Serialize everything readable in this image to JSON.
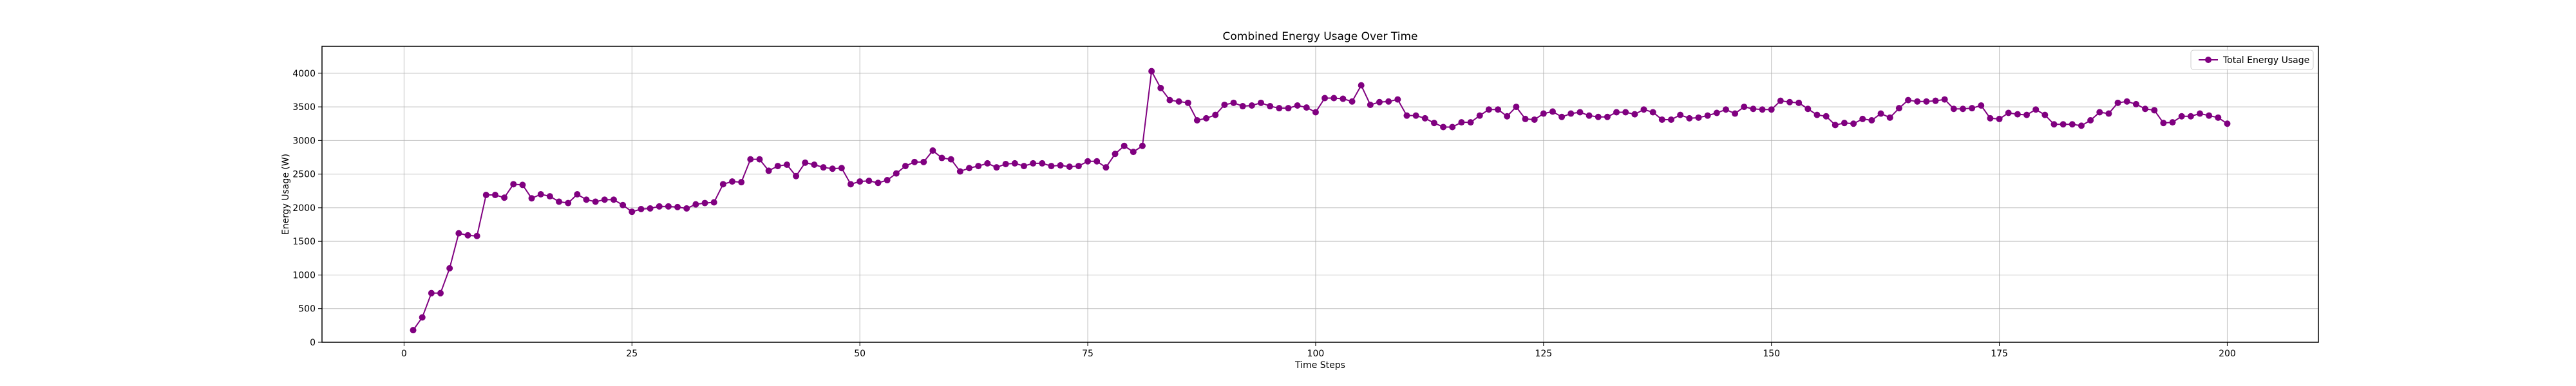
{
  "chart_data": {
    "type": "line",
    "title": "Combined Energy Usage Over Time",
    "xlabel": "Time Steps",
    "ylabel": "Energy Usage (W)",
    "xlim": [
      -9,
      210
    ],
    "ylim": [
      0,
      4400
    ],
    "xticks": [
      0,
      25,
      50,
      75,
      100,
      125,
      150,
      175,
      200
    ],
    "yticks": [
      0,
      500,
      1000,
      1500,
      2000,
      2500,
      3000,
      3500,
      4000
    ],
    "grid": true,
    "legend_position": "top-right",
    "series": [
      {
        "name": "Total Energy Usage",
        "color": "#800080",
        "marker": "circle",
        "x_start": 1,
        "x_step": 1,
        "values": [
          180,
          370,
          730,
          730,
          1100,
          1620,
          1590,
          1580,
          2190,
          2190,
          2150,
          2350,
          2340,
          2140,
          2200,
          2170,
          2090,
          2070,
          2200,
          2120,
          2090,
          2120,
          2120,
          2040,
          1940,
          1980,
          1990,
          2020,
          2020,
          2010,
          1990,
          2050,
          2070,
          2080,
          2350,
          2390,
          2380,
          2720,
          2720,
          2550,
          2620,
          2640,
          2470,
          2670,
          2640,
          2600,
          2580,
          2590,
          2350,
          2390,
          2400,
          2370,
          2410,
          2510,
          2620,
          2680,
          2680,
          2850,
          2740,
          2720,
          2540,
          2590,
          2620,
          2660,
          2600,
          2650,
          2660,
          2620,
          2660,
          2660,
          2620,
          2630,
          2610,
          2620,
          2690,
          2690,
          2600,
          2800,
          2920,
          2830,
          2920,
          4030,
          3780,
          3600,
          3580,
          3560,
          3300,
          3330,
          3380,
          3530,
          3560,
          3510,
          3520,
          3560,
          3510,
          3480,
          3480,
          3520,
          3490,
          3420,
          3630,
          3630,
          3620,
          3580,
          3820,
          3530,
          3570,
          3580,
          3610,
          3370,
          3370,
          3330,
          3260,
          3200,
          3200,
          3270,
          3270,
          3370,
          3460,
          3460,
          3360,
          3500,
          3320,
          3310,
          3400,
          3430,
          3350,
          3400,
          3420,
          3370,
          3350,
          3350,
          3420,
          3420,
          3390,
          3460,
          3420,
          3310,
          3310,
          3380,
          3330,
          3340,
          3370,
          3410,
          3460,
          3400,
          3500,
          3470,
          3460,
          3460,
          3590,
          3570,
          3560,
          3470,
          3380,
          3360,
          3230,
          3260,
          3250,
          3320,
          3300,
          3400,
          3340,
          3480,
          3600,
          3580,
          3580,
          3590,
          3610,
          3470,
          3470,
          3480,
          3520,
          3330,
          3320,
          3410,
          3390,
          3380,
          3460,
          3380,
          3240,
          3240,
          3240,
          3220,
          3300,
          3420,
          3400,
          3560,
          3580,
          3540,
          3470,
          3450,
          3260,
          3270,
          3360,
          3360,
          3400,
          3370,
          3340,
          3250
        ]
      }
    ]
  }
}
